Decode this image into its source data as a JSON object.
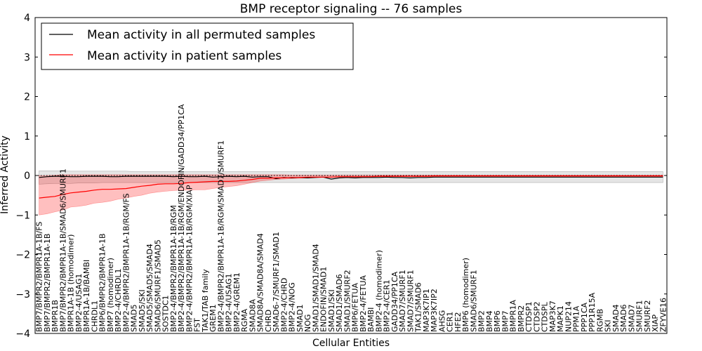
{
  "chart_data": {
    "type": "line",
    "title": "BMP receptor signaling -- 76 samples",
    "xlabel": "Cellular Entities",
    "ylabel": "Inferred Activity",
    "ylim": [
      -4,
      4
    ],
    "yticks": [
      "4",
      "3",
      "2",
      "1",
      "0",
      "−1",
      "−2",
      "−3",
      "−4"
    ],
    "ytick_values": [
      4,
      3,
      2,
      1,
      0,
      -1,
      -2,
      -3,
      -4
    ],
    "legend": {
      "placement": "top-left",
      "entries": [
        {
          "label": "Mean activity in all permuted samples",
          "color": "#000000"
        },
        {
          "label": "Mean activity in patient samples",
          "color": "#ff0000"
        }
      ]
    },
    "categories": [
      "BMP7/BMPR2/BMPR1A-1B/FS",
      "BMP7/BMPR2/BMPR1A-1B",
      "BMPR1B",
      "BMP7/BMPR2/BMPR1A-1B/SMAD6/SMURF1",
      "BMPR1A-1B (homodimer)",
      "BMP2-4/USAG1",
      "BMPR1A-1B/BAMBI",
      "CHRDL1",
      "BMP6/BMPR2/BMPR1A-1B",
      "BMP7 (homodimer)",
      "BMP2-4/CHRDL1",
      "BMP2-4/BMPR2/BMPR1A-1B/RGM/FS",
      "SMAD5",
      "SMAD5/SKI",
      "SMAD5/SMAD5/SMAD4",
      "SMAD6/SMURF1/SMAD5",
      "SOSTDC1",
      "BMP2-4/BMPR2/BMPR1A-1B/RGM",
      "BMP2-4/BMPR2/BMPR1A-1B/RGM/ENDOFIN/GADD34/PP1CA",
      "BMP2-4/BMPR2/BMPR1A-1B/RGM/XIAP",
      "FST",
      "TAK1/TAB family",
      "GREM1",
      "BMP2-4/BMPR2/BMPR1A-1B/RGM/SMAD7/SMURF1",
      "BMP2-4/USAG1",
      "BMP2-4/GREM1",
      "RGMA",
      "SMAD8A",
      "SMAD8A/SMAD8A/SMAD4",
      "CHRD",
      "SMAD6-7/SMURF1/SMAD1",
      "BMP2-4/CHRD",
      "BMP2-4/NOG",
      "SMAD1",
      "NOG",
      "SMAD1/SMAD1/SMAD4",
      "ENDOFIN/SMAD1",
      "SMAD1/SKI",
      "SMAD1/SMAD6",
      "SMAD1/SMURF2",
      "BMP6/FETUA",
      "BMP2-4/FETUA",
      "BAMBI",
      "BMP2-4 (homodimer)",
      "BMP2-4/CER1",
      "GADD34/PP1CA",
      "SMAD7/SMURF1",
      "SMAD7/SMURF1",
      "TAK1/SMAD6",
      "MAP3K7IP1",
      "MAP3K7IP2",
      "AHSG",
      "CER1",
      "HFE2",
      "BMP6 (homodimer)",
      "SMAD6/SMURF1",
      "BMP2",
      "BMP4",
      "BMP6",
      "BMP7",
      "BMPR1A",
      "BMPR2",
      "CTDSP1",
      "CTDSP2",
      "CTDSPL",
      "MAP3K7",
      "MAPK1",
      "NUP214",
      "PPM1A",
      "PPP1CA",
      "PPP1R15A",
      "RGMB",
      "SKI",
      "SMAD4",
      "SMAD6",
      "SMAD7",
      "SMURF1",
      "SMURF2",
      "XIAP",
      "ZFYVE16"
    ],
    "series": [
      {
        "name": "Mean activity in patient samples",
        "color": "#ff0000",
        "values": [
          -0.57,
          -0.55,
          -0.53,
          -0.48,
          -0.44,
          -0.42,
          -0.4,
          -0.37,
          -0.35,
          -0.35,
          -0.34,
          -0.33,
          -0.3,
          -0.27,
          -0.25,
          -0.22,
          -0.21,
          -0.21,
          -0.2,
          -0.18,
          -0.17,
          -0.16,
          -0.15,
          -0.15,
          -0.15,
          -0.14,
          -0.12,
          -0.1,
          -0.07,
          -0.07,
          -0.06,
          -0.06,
          -0.05,
          -0.05,
          -0.04,
          -0.04,
          -0.04,
          -0.04,
          -0.03,
          -0.03,
          -0.03,
          -0.03,
          -0.03,
          -0.02,
          -0.02,
          -0.02,
          -0.02,
          -0.02,
          -0.02,
          -0.02,
          -0.01,
          -0.01,
          -0.01,
          -0.01,
          -0.01,
          -0.01,
          -0.01,
          -0.01,
          -0.01,
          -0.01,
          -0.01,
          -0.01,
          -0.01,
          -0.01,
          -0.01,
          -0.01,
          -0.01,
          -0.01,
          -0.01,
          -0.01,
          -0.01,
          -0.01,
          -0.01,
          -0.01,
          -0.01,
          -0.01,
          -0.01,
          -0.01,
          -0.01,
          -0.01
        ],
        "band_upper": [
          0.0,
          0.0,
          0.01,
          0.02,
          0.02,
          0.02,
          0.02,
          0.02,
          0.02,
          0.02,
          0.02,
          0.02,
          0.02,
          0.02,
          0.02,
          0.02,
          0.02,
          0.02,
          0.02,
          0.02,
          0.02,
          0.02,
          0.02,
          0.02,
          0.02,
          0.02,
          0.02,
          0.02,
          0.02,
          0.02,
          0.02,
          0.02,
          0.01,
          0.01,
          0.01,
          0.01,
          0.01,
          0.01,
          0.01,
          0.01,
          0.01,
          0.01,
          0.01,
          0.01,
          0.01,
          0.01,
          0.01,
          0.01,
          0.01,
          0.01,
          0.01,
          0.01,
          0.01,
          0.01,
          0.01,
          0.01,
          0.01,
          0.01,
          0.01,
          0.01,
          0.01,
          0.01,
          0.01,
          0.01,
          0.01,
          0.01,
          0.01,
          0.01,
          0.01,
          0.01,
          0.01,
          0.01,
          0.01,
          0.01,
          0.01,
          0.01,
          0.01,
          0.01,
          0.01,
          0.01
        ],
        "band_lower": [
          -1.0,
          -0.97,
          -0.92,
          -0.88,
          -0.8,
          -0.78,
          -0.75,
          -0.7,
          -0.68,
          -0.65,
          -0.6,
          -0.57,
          -0.53,
          -0.5,
          -0.45,
          -0.42,
          -0.4,
          -0.38,
          -0.37,
          -0.37,
          -0.36,
          -0.36,
          -0.33,
          -0.3,
          -0.28,
          -0.26,
          -0.22,
          -0.18,
          -0.14,
          -0.12,
          -0.1,
          -0.09,
          -0.08,
          -0.07,
          -0.06,
          -0.05,
          -0.05,
          -0.05,
          -0.04,
          -0.04,
          -0.04,
          -0.04,
          -0.04,
          -0.03,
          -0.03,
          -0.03,
          -0.03,
          -0.03,
          -0.03,
          -0.03,
          -0.03,
          -0.03,
          -0.03,
          -0.03,
          -0.03,
          -0.03,
          -0.03,
          -0.03,
          -0.03,
          -0.03,
          -0.03,
          -0.03,
          -0.03,
          -0.03,
          -0.03,
          -0.03,
          -0.03,
          -0.03,
          -0.03,
          -0.03,
          -0.03,
          -0.03,
          -0.03,
          -0.03,
          -0.03,
          -0.03,
          -0.03,
          -0.03,
          -0.03,
          -0.03
        ]
      },
      {
        "name": "Mean activity in all permuted samples",
        "color": "#000000",
        "values": [
          -0.05,
          -0.03,
          -0.02,
          -0.02,
          -0.03,
          -0.03,
          -0.02,
          -0.02,
          -0.02,
          -0.03,
          -0.03,
          -0.02,
          -0.02,
          -0.02,
          -0.02,
          -0.02,
          -0.02,
          -0.03,
          -0.02,
          -0.03,
          -0.03,
          -0.02,
          -0.04,
          -0.03,
          -0.02,
          -0.03,
          -0.02,
          -0.04,
          -0.03,
          -0.03,
          -0.08,
          -0.05,
          -0.06,
          -0.05,
          -0.06,
          -0.05,
          -0.04,
          -0.09,
          -0.06,
          -0.05,
          -0.06,
          -0.05,
          -0.05,
          -0.05,
          -0.04,
          -0.05,
          -0.05,
          -0.06,
          -0.05,
          -0.05,
          -0.04,
          -0.04,
          -0.04,
          -0.04,
          -0.04,
          -0.04,
          -0.04,
          -0.04,
          -0.04,
          -0.04,
          -0.04,
          -0.04,
          -0.04,
          -0.04,
          -0.04,
          -0.04,
          -0.04,
          -0.04,
          -0.04,
          -0.04,
          -0.04,
          -0.04,
          -0.04,
          -0.04,
          -0.04,
          -0.04,
          -0.04,
          -0.04,
          -0.04,
          -0.04
        ],
        "band_upper": [
          0.12,
          0.12,
          0.12,
          0.12,
          0.11,
          0.11,
          0.11,
          0.11,
          0.11,
          0.11,
          0.11,
          0.11,
          0.1,
          0.1,
          0.1,
          0.1,
          0.1,
          0.1,
          0.1,
          0.1,
          0.1,
          0.1,
          0.1,
          0.1,
          0.1,
          0.1,
          0.1,
          0.1,
          0.1,
          0.1,
          0.1,
          0.1,
          0.1,
          0.1,
          0.1,
          0.1,
          0.1,
          0.1,
          0.1,
          0.1,
          0.1,
          0.1,
          0.1,
          0.1,
          0.1,
          0.1,
          0.1,
          0.1,
          0.1,
          0.1,
          0.1,
          0.1,
          0.1,
          0.1,
          0.1,
          0.1,
          0.1,
          0.1,
          0.1,
          0.1,
          0.1,
          0.1,
          0.1,
          0.1,
          0.1,
          0.1,
          0.1,
          0.1,
          0.1,
          0.1,
          0.1,
          0.1,
          0.1,
          0.1,
          0.1,
          0.1,
          0.1,
          0.1,
          0.1,
          0.1
        ],
        "band_lower": [
          -0.22,
          -0.21,
          -0.2,
          -0.2,
          -0.2,
          -0.19,
          -0.19,
          -0.19,
          -0.18,
          -0.18,
          -0.18,
          -0.18,
          -0.18,
          -0.18,
          -0.18,
          -0.18,
          -0.18,
          -0.18,
          -0.18,
          -0.18,
          -0.18,
          -0.18,
          -0.18,
          -0.18,
          -0.18,
          -0.18,
          -0.18,
          -0.18,
          -0.18,
          -0.18,
          -0.18,
          -0.18,
          -0.18,
          -0.18,
          -0.18,
          -0.18,
          -0.18,
          -0.18,
          -0.18,
          -0.18,
          -0.18,
          -0.18,
          -0.18,
          -0.18,
          -0.18,
          -0.18,
          -0.18,
          -0.18,
          -0.18,
          -0.18,
          -0.18,
          -0.18,
          -0.18,
          -0.18,
          -0.18,
          -0.18,
          -0.18,
          -0.18,
          -0.18,
          -0.18,
          -0.18,
          -0.18,
          -0.18,
          -0.18,
          -0.18,
          -0.18,
          -0.18,
          -0.18,
          -0.18,
          -0.18,
          -0.18,
          -0.18,
          -0.18,
          -0.18,
          -0.18,
          -0.18,
          -0.18,
          -0.18,
          -0.18,
          -0.18
        ]
      }
    ]
  }
}
